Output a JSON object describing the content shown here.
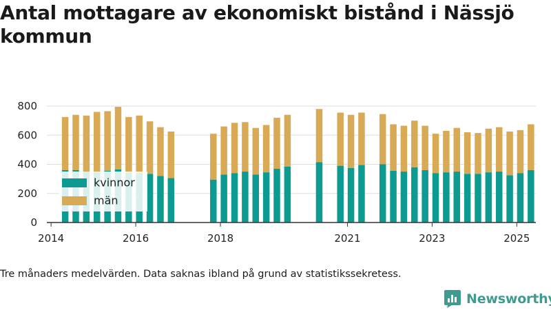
{
  "title": "Antal mottagare av ekonomiskt bistånd i Nässjö kommun",
  "caption": "Tre månaders medelvärden. Data saknas ibland på grund av statistikssekretess.",
  "brand": {
    "name": "Newsworthy",
    "icon": "newsworthy-logo-icon",
    "color": "#3f9a90"
  },
  "chart_data": {
    "type": "bar",
    "stacked": true,
    "x_axis": {
      "min": 2013.9,
      "max": 2025.45,
      "ticks": [
        2014,
        2016,
        2018,
        2021,
        2023,
        2025
      ]
    },
    "y_axis": {
      "min": 0,
      "max": 800,
      "ticks": [
        0,
        200,
        400,
        600,
        800
      ]
    },
    "grid": true,
    "legend_position": "left-middle",
    "series": [
      {
        "name": "kvinnor",
        "color": "#0c9a91"
      },
      {
        "name": "män",
        "color": "#d9aa55"
      }
    ],
    "points": [
      {
        "x": "2014-05",
        "kvinnor": 360,
        "man": 365
      },
      {
        "x": "2014-08",
        "kvinnor": 360,
        "man": 380
      },
      {
        "x": "2014-11",
        "kvinnor": 350,
        "man": 385
      },
      {
        "x": "2015-02",
        "kvinnor": 350,
        "man": 410
      },
      {
        "x": "2015-05",
        "kvinnor": 355,
        "man": 410
      },
      {
        "x": "2015-08",
        "kvinnor": 365,
        "man": 430
      },
      {
        "x": "2015-11",
        "kvinnor": 345,
        "man": 380
      },
      {
        "x": "2016-02",
        "kvinnor": 340,
        "man": 395
      },
      {
        "x": "2016-05",
        "kvinnor": 335,
        "man": 360
      },
      {
        "x": "2016-08",
        "kvinnor": 320,
        "man": 335
      },
      {
        "x": "2016-11",
        "kvinnor": 305,
        "man": 320
      },
      {
        "x": "2017-11",
        "kvinnor": 295,
        "man": 315
      },
      {
        "x": "2018-02",
        "kvinnor": 330,
        "man": 330
      },
      {
        "x": "2018-05",
        "kvinnor": 340,
        "man": 345
      },
      {
        "x": "2018-08",
        "kvinnor": 350,
        "man": 340
      },
      {
        "x": "2018-11",
        "kvinnor": 330,
        "man": 320
      },
      {
        "x": "2019-02",
        "kvinnor": 345,
        "man": 325
      },
      {
        "x": "2019-05",
        "kvinnor": 370,
        "man": 350
      },
      {
        "x": "2019-08",
        "kvinnor": 385,
        "man": 355
      },
      {
        "x": "2020-05",
        "kvinnor": 415,
        "man": 365
      },
      {
        "x": "2020-11",
        "kvinnor": 390,
        "man": 365
      },
      {
        "x": "2021-02",
        "kvinnor": 375,
        "man": 365
      },
      {
        "x": "2021-05",
        "kvinnor": 395,
        "man": 360
      },
      {
        "x": "2021-11",
        "kvinnor": 400,
        "man": 345
      },
      {
        "x": "2022-02",
        "kvinnor": 355,
        "man": 320
      },
      {
        "x": "2022-05",
        "kvinnor": 350,
        "man": 315
      },
      {
        "x": "2022-08",
        "kvinnor": 380,
        "man": 320
      },
      {
        "x": "2022-11",
        "kvinnor": 360,
        "man": 305
      },
      {
        "x": "2023-02",
        "kvinnor": 340,
        "man": 270
      },
      {
        "x": "2023-05",
        "kvinnor": 345,
        "man": 285
      },
      {
        "x": "2023-08",
        "kvinnor": 350,
        "man": 300
      },
      {
        "x": "2023-11",
        "kvinnor": 335,
        "man": 285
      },
      {
        "x": "2024-02",
        "kvinnor": 335,
        "man": 280
      },
      {
        "x": "2024-05",
        "kvinnor": 345,
        "man": 300
      },
      {
        "x": "2024-08",
        "kvinnor": 350,
        "man": 305
      },
      {
        "x": "2024-11",
        "kvinnor": 325,
        "man": 300
      },
      {
        "x": "2025-02",
        "kvinnor": 340,
        "man": 295
      },
      {
        "x": "2025-05",
        "kvinnor": 360,
        "man": 315
      }
    ]
  }
}
